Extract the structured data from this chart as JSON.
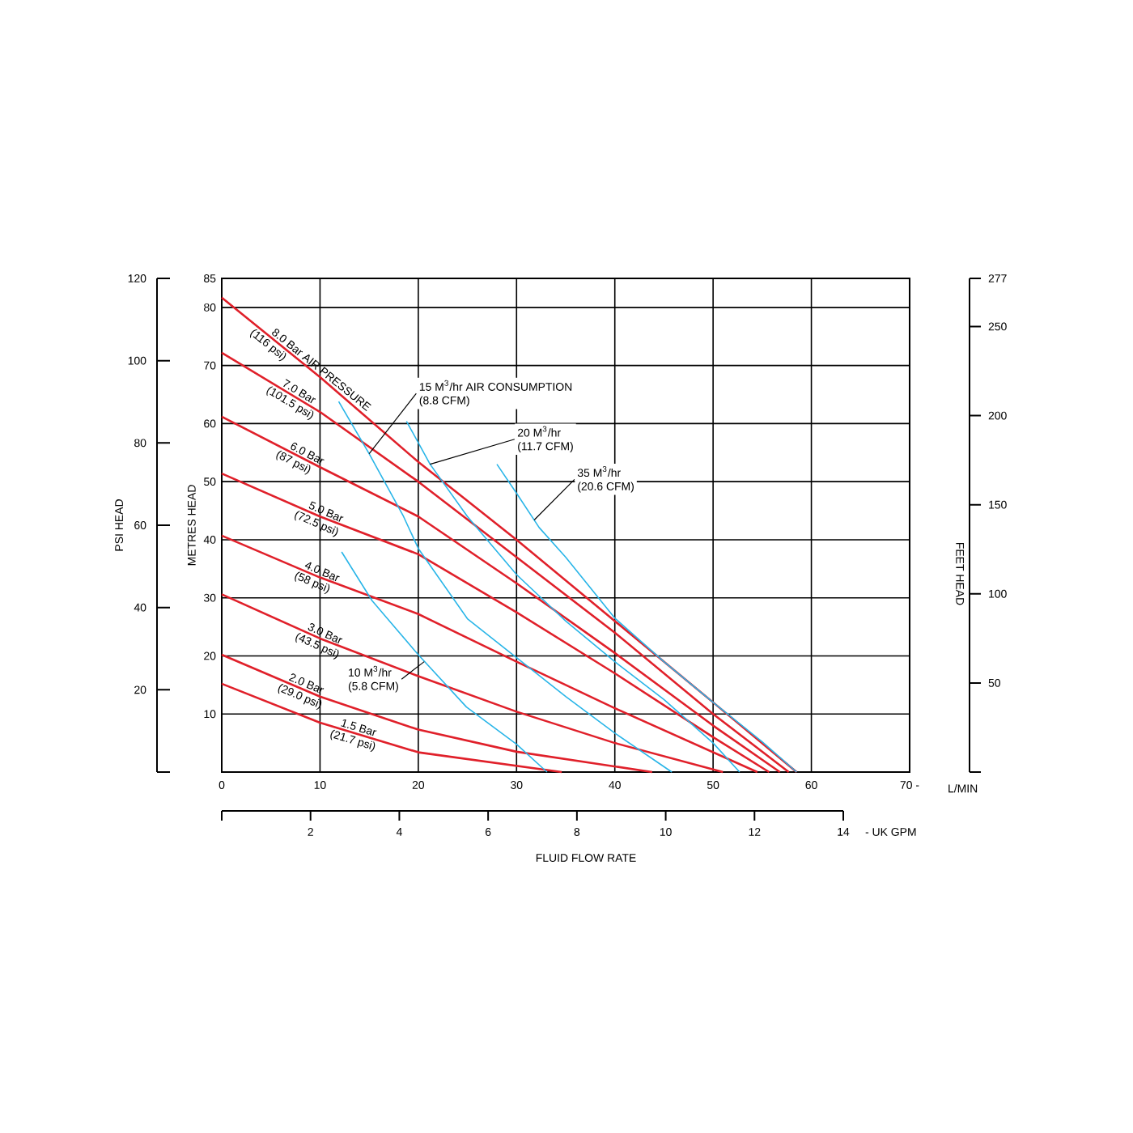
{
  "chart_data": {
    "type": "line",
    "xlabel": "L/MIN",
    "ylabel": "METRES HEAD",
    "y2label": "PSI HEAD",
    "y3label": "FEET HEAD",
    "x2label": "- UK GPM",
    "xlim": [
      0,
      70
    ],
    "xticks": [
      0,
      10,
      20,
      30,
      40,
      50,
      60,
      {
        "value": 70,
        "label": "70 -"
      }
    ],
    "ylim": [
      0,
      85
    ],
    "yticks": [
      10,
      20,
      30,
      40,
      50,
      60,
      70,
      80,
      85
    ],
    "y2lim": [
      0,
      120
    ],
    "y2ticks": [
      {
        "value": 0,
        "label": null
      },
      20,
      40,
      60,
      80,
      100,
      120
    ],
    "y3lim": [
      0,
      277
    ],
    "y3ticks": [
      {
        "value": 0,
        "label": null
      },
      50,
      100,
      150,
      200,
      250,
      277
    ],
    "x2lim": [
      0,
      14
    ],
    "x2ticks": [
      {
        "value": 0,
        "label": null
      },
      2,
      4,
      6,
      8,
      10,
      12,
      14
    ],
    "grid": true,
    "series": [
      {
        "color": "#e0202a",
        "x": [
          0,
          10,
          20,
          30,
          40,
          50,
          58.5
        ],
        "values": [
          81.7,
          68,
          53.4,
          40,
          26,
          12,
          0
        ]
      },
      {
        "color": "#e0202a",
        "x": [
          0,
          10,
          20,
          30,
          40,
          50,
          57.7
        ],
        "values": [
          72.2,
          62,
          50,
          37,
          24,
          10,
          0
        ]
      },
      {
        "color": "#e0202a",
        "x": [
          0,
          10,
          20,
          30,
          40,
          50,
          56.8
        ],
        "values": [
          61.2,
          52.5,
          44,
          32.5,
          20.5,
          8,
          0
        ]
      },
      {
        "color": "#e0202a",
        "x": [
          0,
          10,
          20,
          30,
          40,
          50,
          55.7
        ],
        "values": [
          51.4,
          44,
          37.5,
          27.5,
          17,
          6,
          0
        ]
      },
      {
        "color": "#e0202a",
        "x": [
          0,
          10,
          20,
          30,
          40,
          54.5
        ],
        "values": [
          40.7,
          33.5,
          27.2,
          19,
          11,
          0
        ]
      },
      {
        "color": "#e0202a",
        "x": [
          0,
          10,
          20,
          30,
          40,
          51
        ],
        "values": [
          30.6,
          23,
          16.5,
          10.4,
          5,
          0
        ]
      },
      {
        "color": "#e0202a",
        "x": [
          0,
          10,
          20,
          30,
          43.8
        ],
        "values": [
          20.2,
          13,
          7.3,
          3.5,
          0
        ]
      },
      {
        "color": "#e0202a",
        "x": [
          0,
          10,
          20,
          34.6
        ],
        "values": [
          15.2,
          8.5,
          3.4,
          0
        ]
      },
      {
        "color": "#29b5e8",
        "x": [
          11.9,
          15,
          18.5,
          20,
          25,
          30,
          35,
          40,
          45.8
        ],
        "values": [
          63.8,
          54.8,
          44,
          38.5,
          26.4,
          19.7,
          13,
          6.7,
          0
        ]
      },
      {
        "color": "#29b5e8",
        "x": [
          18.8,
          21.2,
          25,
          30,
          35,
          40,
          45,
          50,
          52.7
        ],
        "values": [
          60.4,
          53,
          44,
          34,
          26,
          19,
          12.5,
          5,
          0
        ]
      },
      {
        "color": "#29b5e8",
        "x": [
          28,
          30,
          32.3,
          35,
          40,
          45,
          50,
          55,
          58.5
        ],
        "values": [
          53,
          48,
          42.1,
          37,
          26.5,
          19,
          12,
          5.2,
          0
        ]
      },
      {
        "color": "#29b5e8",
        "x": [
          12.2,
          15.3,
          20,
          24.9,
          30,
          33.1
        ],
        "values": [
          37.9,
          29.5,
          20.2,
          11.2,
          4.8,
          0
        ]
      }
    ],
    "annotations": [
      {
        "text": "8.0 Bar AIR PRESSURE",
        "x": 4.6,
        "y": 75.4
      },
      {
        "text": "(116 psi)",
        "x": 3.3,
        "y": 77.2
      },
      {
        "text": "7.0 Bar",
        "x": 5.7,
        "y": 66.4
      },
      {
        "text": "(101.5 psi)",
        "x": 4.8,
        "y": 67.3
      },
      {
        "text": "6.0 Bar",
        "x": 6.5,
        "y": 55.5
      },
      {
        "text": "(87 psi)",
        "x": 5.7,
        "y": 56.2
      },
      {
        "text": "5.0 Bar",
        "x": 8.4,
        "y": 45.2
      },
      {
        "text": "(72.5 psi)",
        "x": 7.5,
        "y": 45.8
      },
      {
        "text": "4.0 Bar",
        "x": 8,
        "y": 34.9
      },
      {
        "text": "(58 psi)",
        "x": 7.5,
        "y": 35.3
      },
      {
        "text": "3.0 Bar",
        "x": 8.3,
        "y": 24.3
      },
      {
        "text": "(43.5 psi)",
        "x": 7.6,
        "y": 24.8
      },
      {
        "text": "2.0 Bar",
        "x": 6.4,
        "y": 15.6
      },
      {
        "text": "(29.0 psi)",
        "x": 5.8,
        "y": 16
      },
      {
        "text": "1.5 Bar",
        "x": 11.7,
        "y": 7.6
      },
      {
        "text": "(21.7 psi)",
        "x": 11,
        "y": 8
      },
      {
        "text": "15 M$^{3}$/hr AIR CONSUMPTION",
        "x": 15,
        "y": 54.8
      },
      {
        "text": "(8.8 CFM)",
        "x": 15,
        "y": 54.8
      },
      {
        "text": "20 M$^{3}$/hr",
        "x": 21.2,
        "y": 53
      },
      {
        "text": "(11.7 CFM)",
        "x": 21.2,
        "y": 53
      },
      {
        "text": "35 M$^{3}$/hr",
        "x": 31.8,
        "y": 43.4
      },
      {
        "text": "(20.6 CFM)",
        "x": 31.8,
        "y": 43.4
      },
      {
        "text": "10 M$^{3}$/hr",
        "x": 20.6,
        "y": 19
      },
      {
        "text": "(5.8 CFM)",
        "x": 20.6,
        "y": 19
      },
      "FLUID FLOW RATE"
    ]
  }
}
